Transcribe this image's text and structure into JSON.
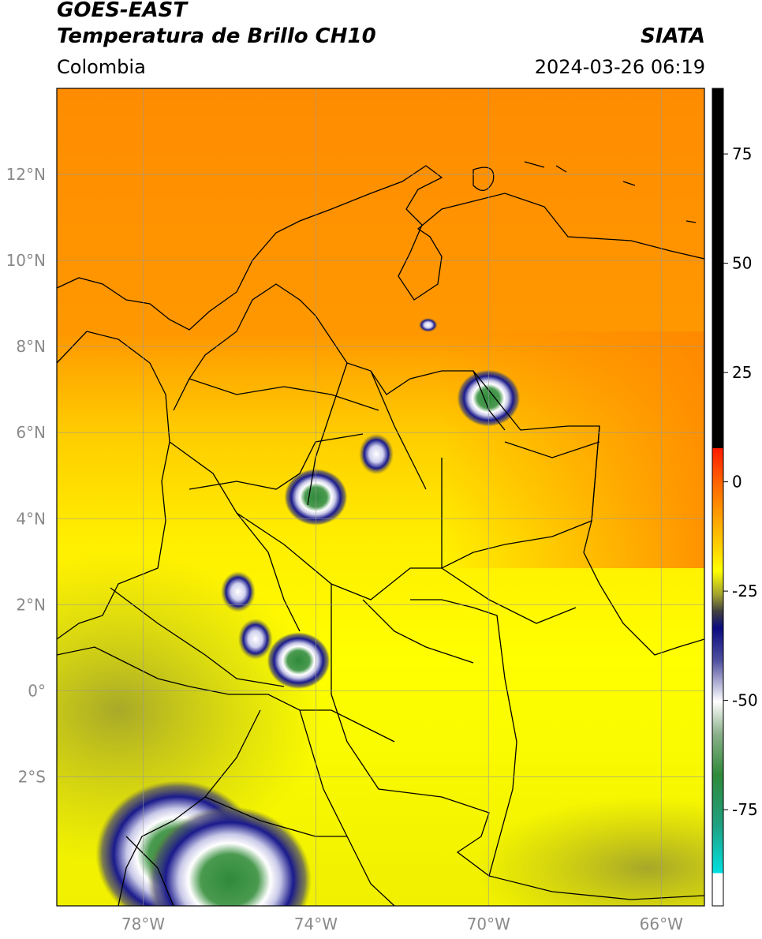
{
  "header": {
    "satellite": "GOES-EAST",
    "product": "Temperatura de Brillo CH10",
    "source": "SIATA",
    "region": "Colombia",
    "timestamp": "2024-03-26 06:19"
  },
  "map": {
    "lon_range": [
      -80,
      -65
    ],
    "lat_range": [
      -5,
      14
    ],
    "lon_ticks": [
      {
        "value": -78,
        "label": "78°W"
      },
      {
        "value": -74,
        "label": "74°W"
      },
      {
        "value": -70,
        "label": "70°W"
      },
      {
        "value": -66,
        "label": "66°W"
      }
    ],
    "lat_ticks": [
      {
        "value": 12,
        "label": "12°N"
      },
      {
        "value": 10,
        "label": "10°N"
      },
      {
        "value": 8,
        "label": "8°N"
      },
      {
        "value": 6,
        "label": "6°N"
      },
      {
        "value": 4,
        "label": "4°N"
      },
      {
        "value": 2,
        "label": "2°N"
      },
      {
        "value": 0,
        "label": "0°"
      },
      {
        "value": -2,
        "label": "2°S"
      }
    ],
    "grid": true
  },
  "colorbar": {
    "range": [
      -97,
      90
    ],
    "ticks": [
      {
        "value": 75,
        "label": "75"
      },
      {
        "value": 50,
        "label": "50"
      },
      {
        "value": 25,
        "label": "25"
      },
      {
        "value": 0,
        "label": "0"
      },
      {
        "value": -25,
        "label": "-25"
      },
      {
        "value": -50,
        "label": "-50"
      },
      {
        "value": -75,
        "label": "-75"
      }
    ],
    "colors": {
      "top": "#000000",
      "red": "#ff1a00",
      "orange": "#ff8c00",
      "yellow": "#ffff00",
      "olive": "#9a9a30",
      "navy": "#0a0a80",
      "white": "#ffffff",
      "green": "#3a8a3a",
      "cyan": "#00e0e0"
    }
  },
  "cloud_cells": [
    {
      "lon": -70.0,
      "lat": 6.8,
      "kind": "deep"
    },
    {
      "lon": -74.0,
      "lat": 4.5,
      "kind": "deep"
    },
    {
      "lon": -74.4,
      "lat": 0.7,
      "kind": "deep"
    },
    {
      "lon": -75.8,
      "lat": 2.3,
      "kind": "medium"
    },
    {
      "lon": -75.4,
      "lat": 1.2,
      "kind": "medium"
    },
    {
      "lon": -72.6,
      "lat": 5.5,
      "kind": "medium"
    },
    {
      "lon": -71.4,
      "lat": 8.5,
      "kind": "small"
    },
    {
      "lon": -77.2,
      "lat": -3.8,
      "kind": "deep"
    },
    {
      "lon": -76.0,
      "lat": -4.4,
      "kind": "deep"
    }
  ]
}
